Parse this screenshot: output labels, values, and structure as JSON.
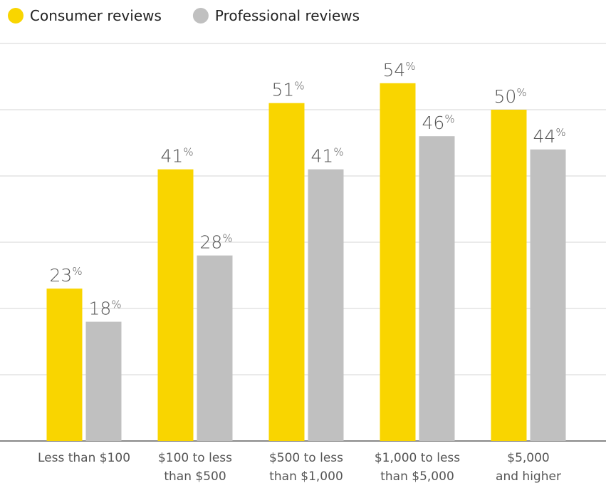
{
  "chart_data": {
    "type": "bar",
    "categories": [
      [
        "Less than $100"
      ],
      [
        "$100 to less",
        "than $500"
      ],
      [
        "$500 to less",
        "than $1,000"
      ],
      [
        "$1,000 to less",
        "than $5,000"
      ],
      [
        "$5,000",
        "and higher"
      ]
    ],
    "series": [
      {
        "name": "Consumer reviews",
        "color": "#f9d500",
        "values": [
          23,
          41,
          51,
          54,
          50
        ],
        "value_labels": [
          "23%",
          "41%",
          "51%",
          "54%",
          "50%"
        ]
      },
      {
        "name": "Professional reviews",
        "color": "#c0c0c0",
        "values": [
          18,
          28,
          41,
          46,
          44
        ],
        "value_labels": [
          "18%",
          "28%",
          "41%",
          "46%",
          "44%"
        ]
      }
    ],
    "ylim": [
      0,
      60
    ],
    "yticks": [
      0,
      10,
      20,
      30,
      40,
      50,
      60
    ],
    "grid": true
  }
}
